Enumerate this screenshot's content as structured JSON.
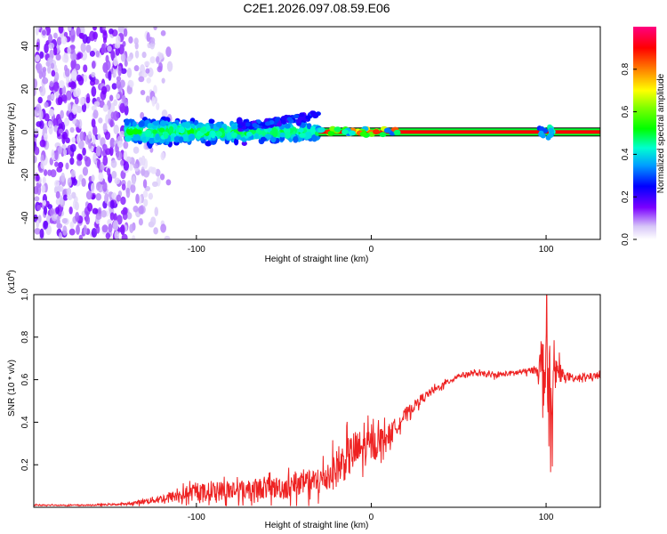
{
  "title": "C2E1.2026.097.08.59.E06",
  "colors": {
    "snr_line": "#ee2222",
    "axis": "#000000",
    "background": "#ffffff"
  },
  "chart_data": [
    {
      "type": "heatmap",
      "name": "spectrogram",
      "xlabel": "Height of straight line (km)",
      "ylabel": "Frequency (Hz)",
      "xlim": [
        -193,
        131
      ],
      "ylim": [
        -50,
        49
      ],
      "x_ticks": [
        -100,
        0,
        100
      ],
      "y_ticks": [
        -40,
        -20,
        0,
        20,
        40
      ],
      "colorbar": {
        "label": "Normalized spectral amplitude",
        "range": [
          0,
          1
        ],
        "ticks": [
          0.0,
          0.2,
          0.4,
          0.6,
          0.8
        ]
      },
      "features": [
        {
          "region": "broadband noise",
          "x_range": [
            -193,
            -115
          ],
          "freq_range": [
            -50,
            49
          ],
          "amplitude": 0.1
        },
        {
          "region": "broadened line",
          "x_range": [
            -140,
            -30
          ],
          "freq_range": [
            -8,
            8
          ],
          "amplitude": 0.3
        },
        {
          "region": "drift branch",
          "x_range": [
            -75,
            -30
          ],
          "freq_start": 2,
          "freq_end": 8,
          "amplitude": 0.25
        },
        {
          "region": "narrow line",
          "x_range": [
            -30,
            131
          ],
          "freq": 0,
          "amplitude": 1.0
        },
        {
          "region": "burst",
          "x": 100,
          "freq_range": [
            -3,
            3
          ],
          "amplitude": 0.4
        }
      ]
    },
    {
      "type": "line",
      "name": "snr",
      "xlabel": "Height of straight line (km)",
      "ylabel": "SNR (10 * v/v)",
      "y_multiplier": "(x10^4)",
      "multiplier_base": "(x10",
      "multiplier_exp": "4",
      "multiplier_close": ")",
      "xlim": [
        -193,
        131
      ],
      "ylim": [
        0,
        1.0
      ],
      "x_ticks": [
        -100,
        0,
        100
      ],
      "y_ticks": [
        0.2,
        0.4,
        0.6,
        0.8,
        1.0
      ],
      "x": [
        -193,
        -160,
        -140,
        -120,
        -100,
        -80,
        -60,
        -40,
        -30,
        -20,
        -10,
        0,
        10,
        20,
        30,
        40,
        50,
        60,
        70,
        80,
        90,
        95,
        100,
        103,
        106,
        110,
        115,
        120,
        131
      ],
      "values": [
        0.01,
        0.01,
        0.015,
        0.04,
        0.07,
        0.08,
        0.09,
        0.1,
        0.12,
        0.18,
        0.26,
        0.29,
        0.34,
        0.44,
        0.52,
        0.57,
        0.62,
        0.63,
        0.62,
        0.63,
        0.64,
        0.65,
        0.66,
        0.4,
        0.65,
        0.62,
        0.6,
        0.61,
        0.62
      ],
      "noise": [
        0.003,
        0.003,
        0.005,
        0.02,
        0.04,
        0.05,
        0.05,
        0.06,
        0.07,
        0.09,
        0.1,
        0.08,
        0.05,
        0.03,
        0.02,
        0.015,
        0.012,
        0.012,
        0.012,
        0.012,
        0.015,
        0.02,
        0.25,
        0.3,
        0.08,
        0.02,
        0.015,
        0.015,
        0.015
      ]
    }
  ]
}
